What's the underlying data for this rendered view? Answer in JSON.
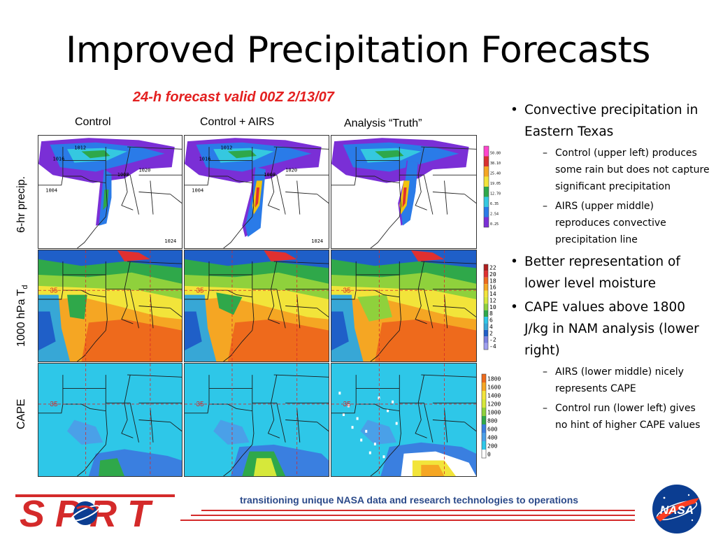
{
  "slide": {
    "title": "Improved Precipitation Forecasts",
    "subtitle": "24-h forecast valid 00Z 2/13/07"
  },
  "columns": [
    "Control",
    "Control + AIRS",
    "Analysis “Truth”"
  ],
  "rows": {
    "precip": "6-hr precip.",
    "dewpoint_main": "1000 hPa T",
    "dewpoint_sub": "d",
    "cape": "CAPE"
  },
  "legends": {
    "precip": [
      "50.80",
      "38.10",
      "25.40",
      "19.05",
      "12.70",
      "6.35",
      "2.54",
      "0.25"
    ],
    "dewpoint": [
      "22",
      "20",
      "18",
      "16",
      "14",
      "12",
      "10",
      "8",
      "6",
      "4",
      "2",
      "-2",
      "-4"
    ],
    "cape": [
      "1800",
      "1600",
      "1400",
      "1200",
      "1000",
      "800",
      "600",
      "400",
      "200",
      "0"
    ]
  },
  "map_labels": {
    "latitude": "35",
    "isobars": [
      "1016",
      "1012",
      "1008",
      "1004",
      "1020",
      "1024"
    ]
  },
  "colors": {
    "title_red": "#e32020",
    "footer_blue": "#2b4a8a",
    "sport_red": "#d42a2a",
    "nasa_blue": "#0b3d91"
  },
  "bullets": [
    {
      "text": "Convective precipitation in Eastern Texas",
      "sub": [
        "Control (upper left) produces some rain but does not capture significant precipitation",
        "AIRS (upper middle) reproduces convective precipitation line"
      ]
    },
    {
      "text": "Better representation of lower level moisture",
      "sub": []
    },
    {
      "text": "CAPE values above 1800 J/kg in NAM analysis (lower right)",
      "sub": [
        "AIRS (lower middle) nicely represents CAPE",
        "Control run (lower left) gives no hint of higher CAPE values"
      ]
    }
  ],
  "footer": {
    "tagline": "transitioning unique NASA data and research technologies to operations",
    "sport_logo": "SPoRT",
    "nasa_logo": "NASA"
  }
}
